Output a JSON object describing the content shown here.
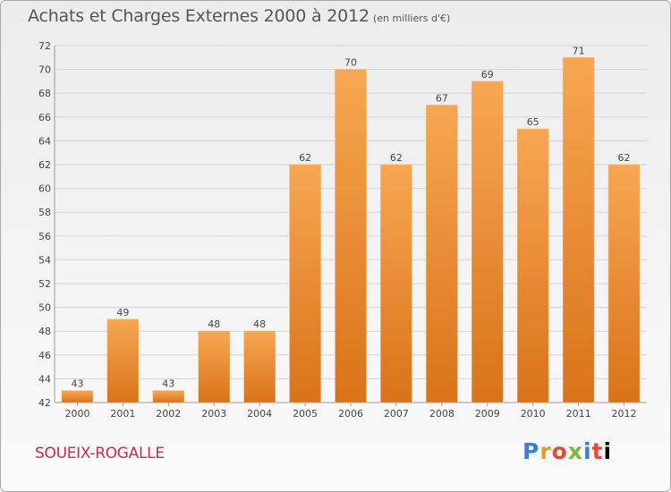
{
  "title": "Achats et Charges Externes 2000 à 2012",
  "subtitle": "(en milliers d'€)",
  "town": "SOUEIX-ROGALLE",
  "logo": "Proxiti",
  "colors": {
    "bar_light": "#f7a752",
    "bar_dark": "#d97319",
    "title": "#555555",
    "town": "#c0304a"
  },
  "chart_data": {
    "type": "bar",
    "categories": [
      "2000",
      "2001",
      "2002",
      "2003",
      "2004",
      "2005",
      "2006",
      "2007",
      "2008",
      "2009",
      "2010",
      "2011",
      "2012"
    ],
    "values": [
      43,
      49,
      43,
      48,
      48,
      62,
      70,
      62,
      67,
      69,
      65,
      71,
      62
    ],
    "ylim": [
      42,
      72
    ],
    "yticks": [
      42,
      44,
      46,
      48,
      50,
      52,
      54,
      56,
      58,
      60,
      62,
      64,
      66,
      68,
      70,
      72
    ],
    "grid": true,
    "title": "Achats et Charges Externes 2000 à 2012",
    "xlabel": "",
    "ylabel": ""
  }
}
